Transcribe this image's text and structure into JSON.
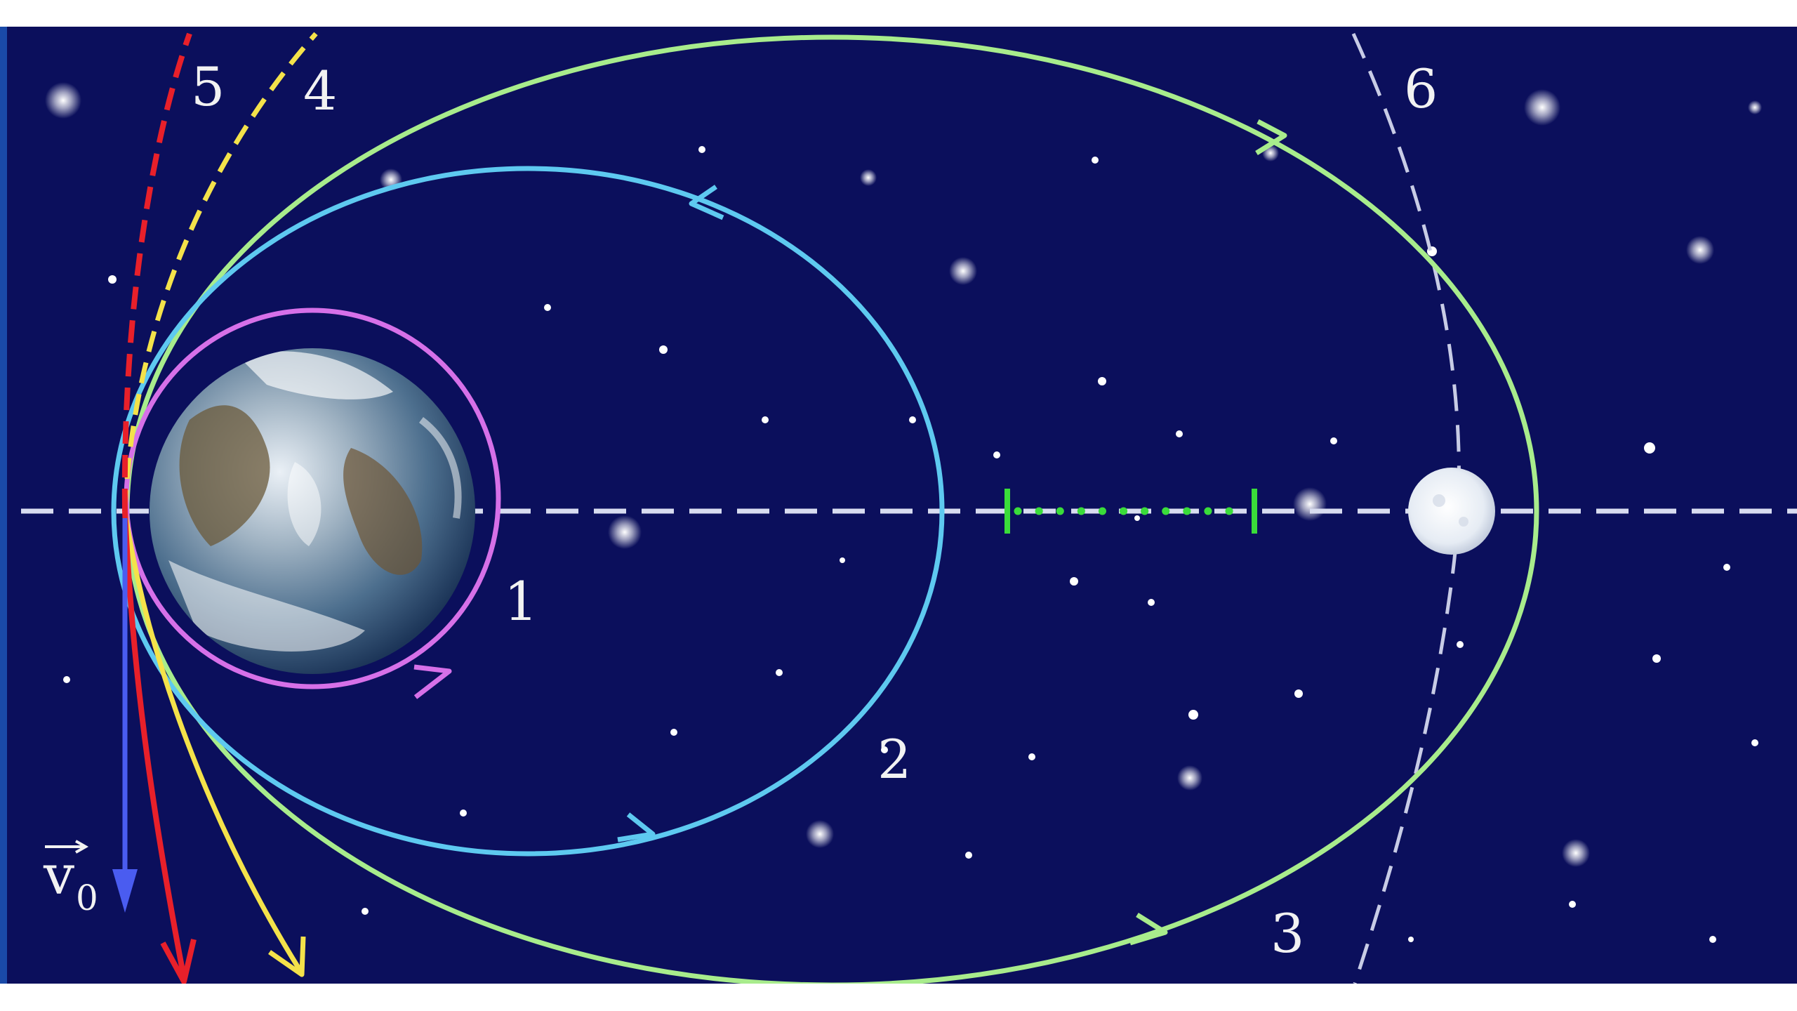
{
  "diagram": {
    "labels": {
      "orbit_1": "1",
      "orbit_2": "2",
      "orbit_3": "3",
      "trajectory_4": "4",
      "trajectory_5": "5",
      "moon_orbit_6": "6"
    },
    "velocity": {
      "symbol": "v",
      "subscript": "0"
    },
    "colors": {
      "space": "#0b0f5c",
      "orbit_1": "#d670e8",
      "orbit_2": "#5ec9f0",
      "orbit_3": "#a8ec8c",
      "trajectory_4": "#f4e24a",
      "trajectory_5": "#e8202a",
      "velocity_vector": "#4a5cf0",
      "moon_orbit": "#c8cce6",
      "axis": "#d8dcf0",
      "scale_marker": "#3adc3a",
      "moon": "#eef2f8"
    },
    "icons": [
      "earth-icon",
      "moon-icon",
      "star-field"
    ]
  }
}
